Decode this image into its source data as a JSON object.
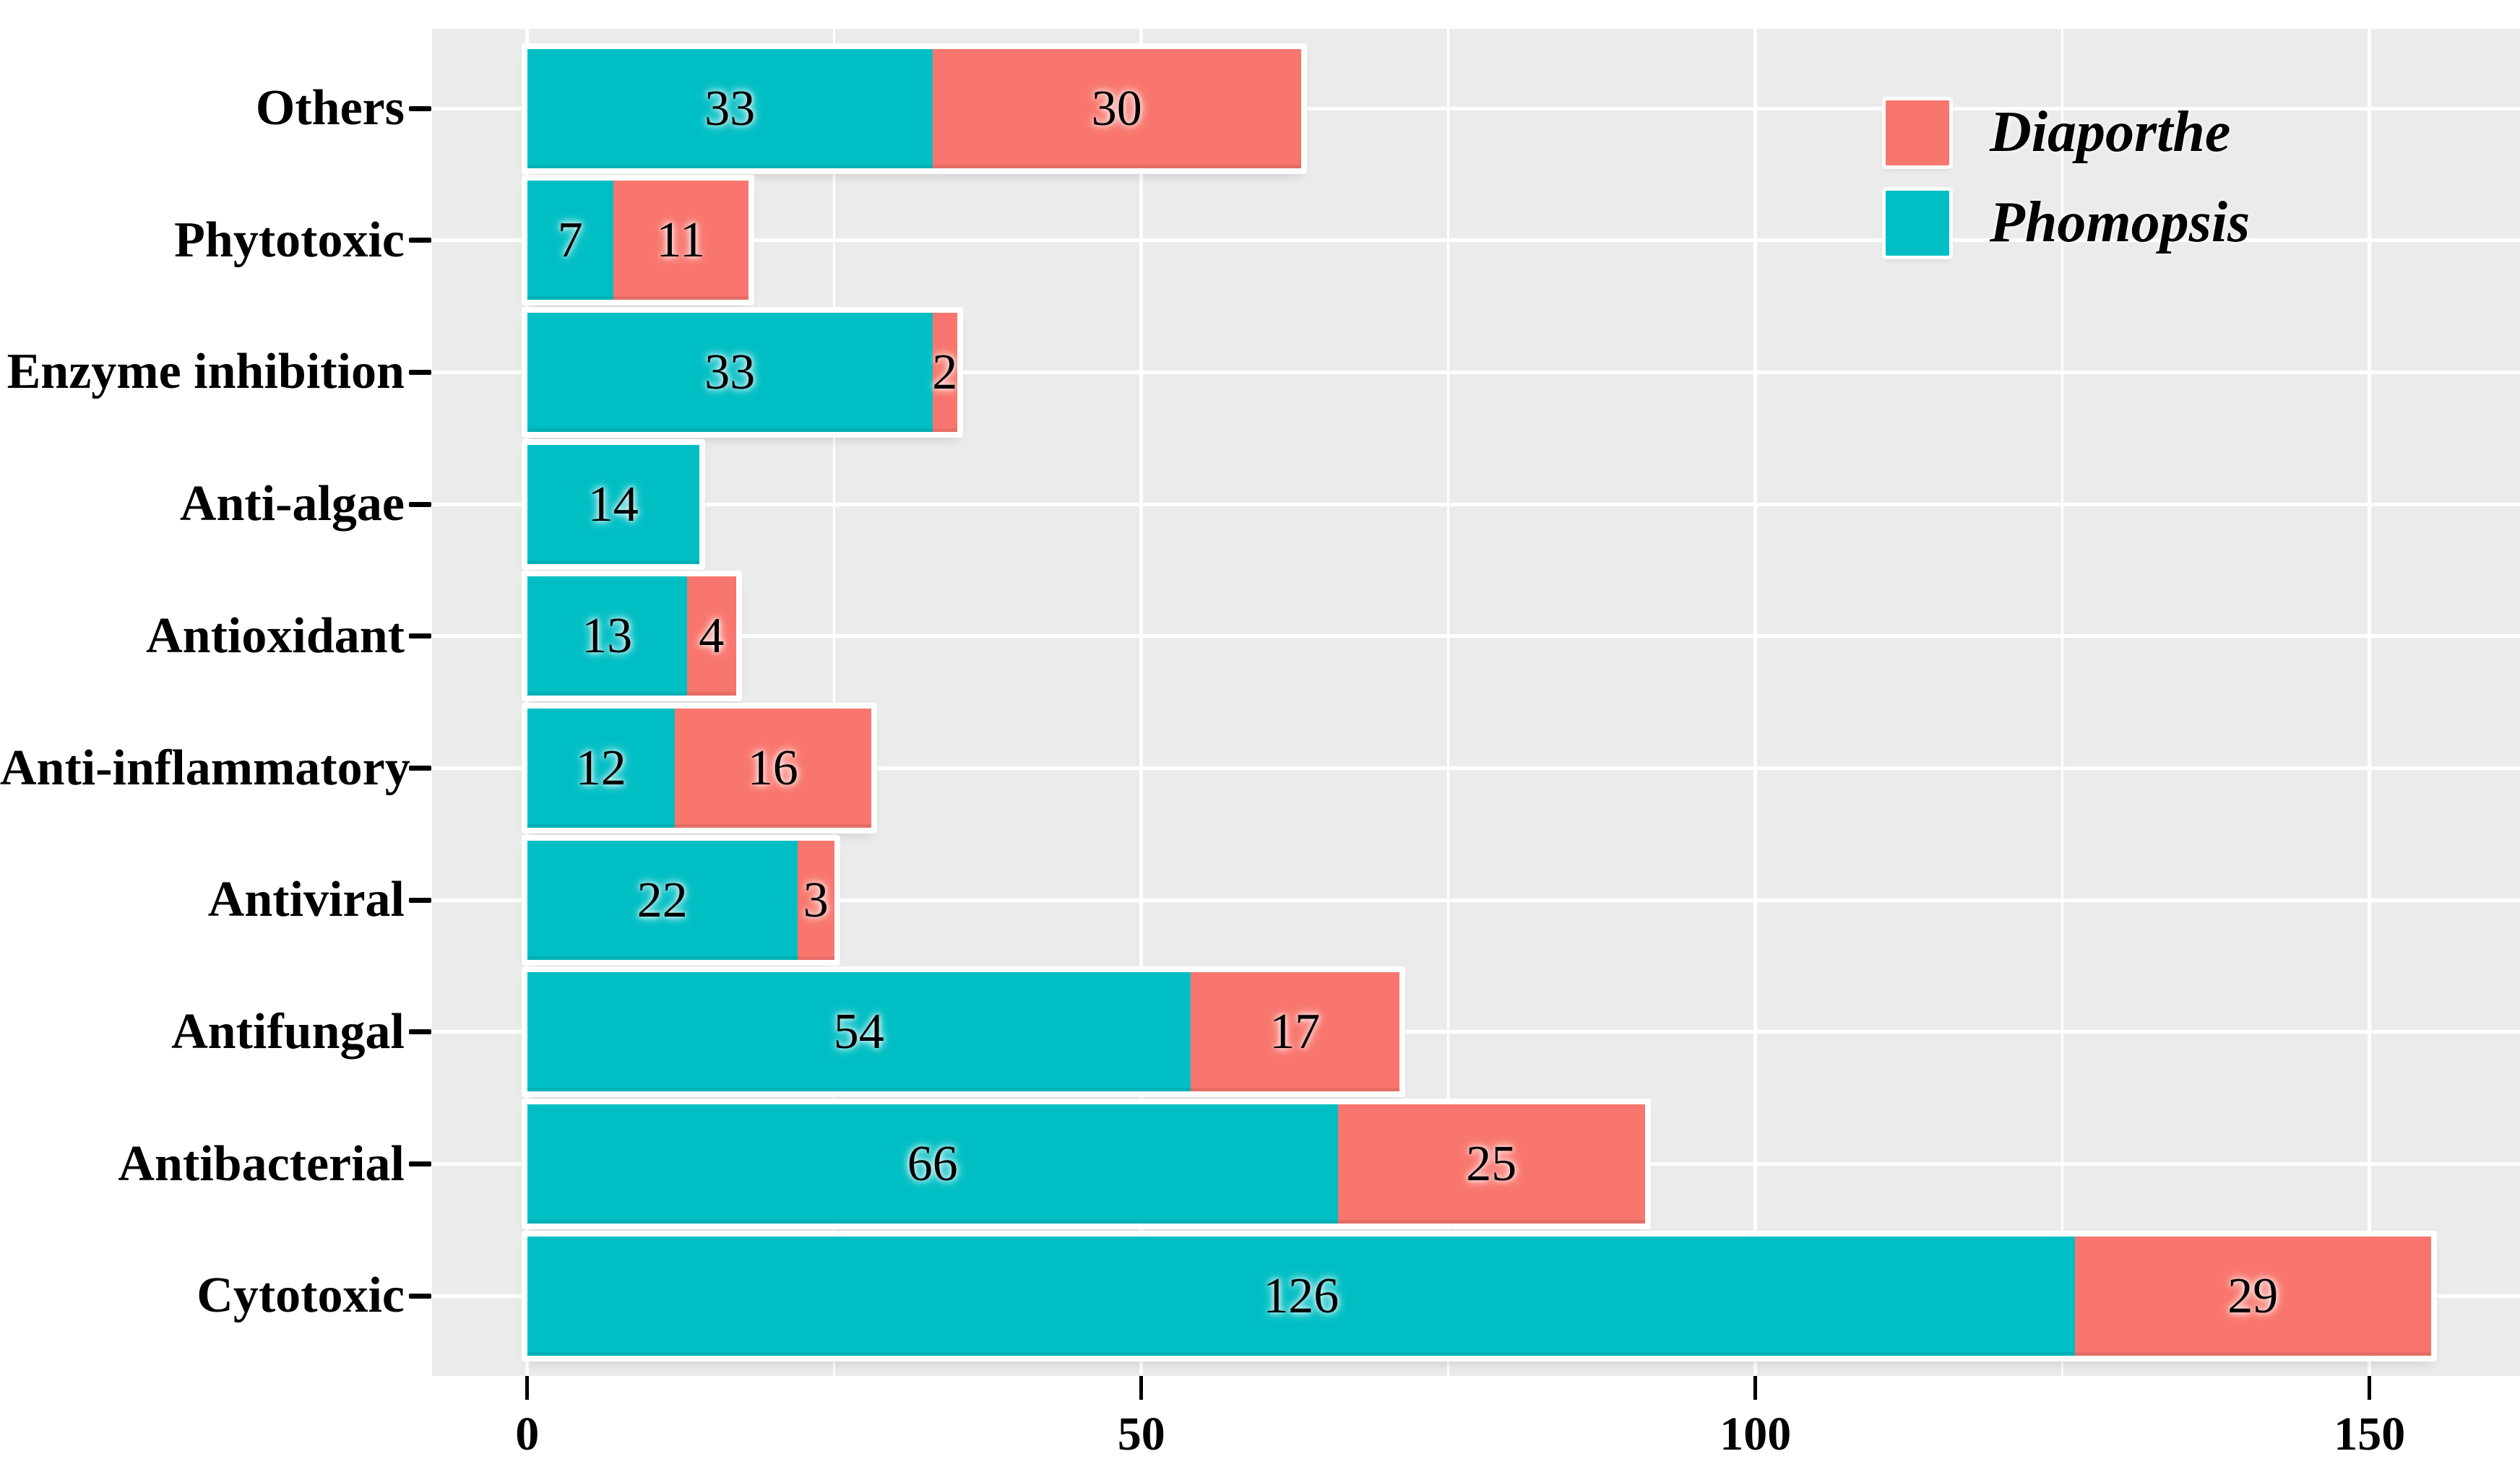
{
  "chart_data": {
    "type": "bar",
    "orientation": "horizontal",
    "stacked": true,
    "title": "",
    "xlabel": "",
    "ylabel": "",
    "categories": [
      "Others",
      "Phytotoxic",
      "Enzyme inhibition",
      "Anti-algae",
      "Antioxidant",
      "Anti-inflammatory",
      "Antiviral",
      "Antifungal",
      "Antibacterial",
      "Cytotoxic"
    ],
    "series": [
      {
        "name": "Phomopsis",
        "color": "#00BFC4",
        "values": [
          33,
          7,
          33,
          14,
          13,
          12,
          22,
          54,
          66,
          126
        ]
      },
      {
        "name": "Diaporthe",
        "color": "#F8766D",
        "values": [
          30,
          11,
          2,
          0,
          4,
          16,
          3,
          17,
          25,
          29
        ]
      }
    ],
    "totals": [
      63,
      18,
      35,
      14,
      17,
      28,
      25,
      71,
      91,
      155
    ],
    "x_ticks": [
      "0",
      "50",
      "100",
      "150"
    ],
    "x_tick_values": [
      0,
      50,
      100,
      150
    ],
    "x_minor_values": [
      25,
      75,
      125
    ],
    "xlim_units": [
      -7.75,
      162.75
    ],
    "grid": "on",
    "panel_bg": "#EBEBEB",
    "grid_color": "#FFFFFF",
    "legend": {
      "position": "top-right-inside",
      "entries": [
        {
          "label": "Diaporthe",
          "color": "#F8766D"
        },
        {
          "label": "Phomopsis",
          "color": "#00BFC4"
        }
      ]
    }
  }
}
